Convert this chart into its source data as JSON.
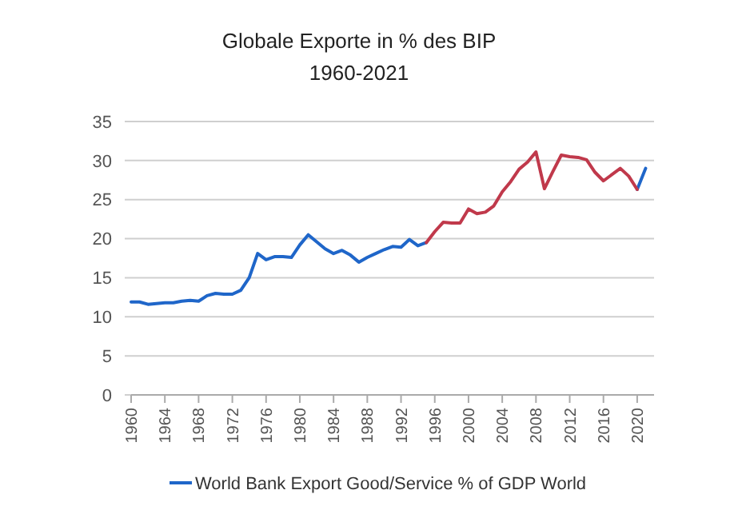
{
  "chart_data": {
    "type": "line",
    "title": "Globale Exporte in % des BIP",
    "subtitle": "1960-2021",
    "x": [
      1960,
      1961,
      1962,
      1963,
      1964,
      1965,
      1966,
      1967,
      1968,
      1969,
      1970,
      1971,
      1972,
      1973,
      1974,
      1975,
      1976,
      1977,
      1978,
      1979,
      1980,
      1981,
      1982,
      1983,
      1984,
      1985,
      1986,
      1987,
      1988,
      1989,
      1990,
      1991,
      1992,
      1993,
      1994,
      1995,
      1996,
      1997,
      1998,
      1999,
      2000,
      2001,
      2002,
      2003,
      2004,
      2005,
      2006,
      2007,
      2008,
      2009,
      2010,
      2011,
      2012,
      2013,
      2014,
      2015,
      2016,
      2017,
      2018,
      2019,
      2020,
      2021
    ],
    "series": [
      {
        "name": "World Bank Export Good/Service % of GDP World",
        "color": "#1f66c9",
        "values": [
          11.9,
          11.9,
          11.6,
          11.7,
          11.8,
          11.8,
          12.0,
          12.1,
          12.0,
          12.7,
          13.0,
          12.9,
          12.9,
          13.4,
          15.0,
          18.1,
          17.3,
          17.7,
          17.7,
          17.6,
          19.2,
          20.5,
          19.6,
          18.7,
          18.1,
          18.5,
          17.9,
          17.0,
          17.6,
          18.1,
          18.6,
          19.0,
          18.9,
          19.9,
          19.1,
          19.5,
          null,
          null,
          null,
          null,
          null,
          null,
          null,
          null,
          null,
          null,
          null,
          null,
          null,
          null,
          null,
          null,
          null,
          null,
          null,
          null,
          null,
          null,
          null,
          null,
          26.3,
          29.0
        ]
      },
      {
        "color": "#c0394b",
        "values": [
          null,
          null,
          null,
          null,
          null,
          null,
          null,
          null,
          null,
          null,
          null,
          null,
          null,
          null,
          null,
          null,
          null,
          null,
          null,
          null,
          null,
          null,
          null,
          null,
          null,
          null,
          null,
          null,
          null,
          null,
          null,
          null,
          null,
          null,
          null,
          19.5,
          20.9,
          22.1,
          22.0,
          22.0,
          23.8,
          23.2,
          23.4,
          24.2,
          26.0,
          27.3,
          28.9,
          29.8,
          31.1,
          26.4,
          28.6,
          30.7,
          30.5,
          30.4,
          30.1,
          28.5,
          27.4,
          28.2,
          29.0,
          28.0,
          26.3,
          null
        ]
      }
    ],
    "xlim": [
      1960,
      2022
    ],
    "xticks": [
      1960,
      1964,
      1968,
      1972,
      1976,
      1980,
      1984,
      1988,
      1992,
      1996,
      2000,
      2004,
      2008,
      2012,
      2016,
      2020
    ],
    "ylim": [
      0,
      35
    ],
    "yticks": [
      0,
      5,
      10,
      15,
      20,
      25,
      30,
      35
    ],
    "grid": "y",
    "legend": "bottom",
    "marker": "none",
    "line_style": "solid"
  }
}
